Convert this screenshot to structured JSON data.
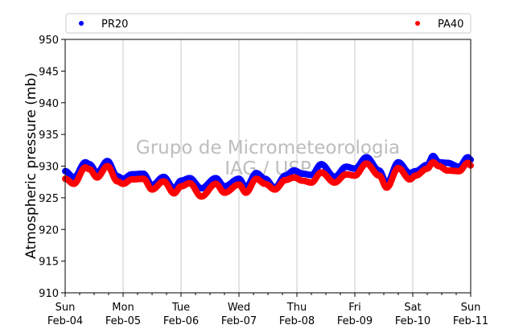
{
  "chart_data": {
    "type": "scatter",
    "title": "",
    "xlabel": "",
    "ylabel": "Atmospheric pressure (mb)",
    "ylim": [
      910,
      950
    ],
    "yticks": [
      910,
      915,
      920,
      925,
      930,
      935,
      940,
      945,
      950
    ],
    "xlim_days": [
      0,
      7
    ],
    "x_ticks": [
      {
        "day": "Sun",
        "date": "Feb-04"
      },
      {
        "day": "Mon",
        "date": "Feb-05"
      },
      {
        "day": "Tue",
        "date": "Feb-06"
      },
      {
        "day": "Wed",
        "date": "Feb-07"
      },
      {
        "day": "Thu",
        "date": "Feb-08"
      },
      {
        "day": "Fri",
        "date": "Feb-09"
      },
      {
        "day": "Sat",
        "date": "Feb-10"
      },
      {
        "day": "Sun",
        "date": "Feb-11"
      }
    ],
    "grid": "vertical",
    "legend_position": "top",
    "watermark": [
      "Grupo de Micrometeorologia",
      "IAG / USP"
    ],
    "series": [
      {
        "name": "PR20",
        "color": "#0000ff",
        "x": [
          0,
          0.15,
          0.35,
          0.42,
          0.55,
          0.73,
          0.9,
          1.0,
          1.15,
          1.35,
          1.5,
          1.7,
          1.88,
          2.0,
          2.15,
          2.35,
          2.6,
          2.75,
          3.0,
          3.12,
          3.3,
          3.45,
          3.62,
          3.8,
          3.95,
          4.1,
          4.25,
          4.42,
          4.65,
          4.85,
          5.0,
          5.2,
          5.42,
          5.55,
          5.75,
          5.95,
          6.05,
          6.25,
          6.35,
          6.45,
          6.6,
          6.8,
          6.95,
          7.0
        ],
        "y": [
          929.2,
          928.2,
          930.6,
          930.3,
          929.0,
          930.8,
          928.4,
          928.0,
          928.7,
          928.8,
          927.0,
          928.3,
          926.5,
          927.7,
          928.1,
          926.5,
          928.1,
          926.8,
          928.0,
          926.7,
          928.9,
          928.0,
          926.6,
          928.5,
          929.3,
          928.8,
          928.6,
          930.3,
          928.3,
          929.9,
          929.6,
          931.4,
          929.3,
          927.3,
          930.6,
          928.9,
          929.2,
          930.2,
          931.6,
          930.6,
          930.5,
          929.9,
          931.4,
          931.0
        ]
      },
      {
        "name": "PA40",
        "color": "#ff0000",
        "x": [
          0,
          0.15,
          0.35,
          0.42,
          0.55,
          0.73,
          0.9,
          1.0,
          1.15,
          1.35,
          1.5,
          1.7,
          1.88,
          2.0,
          2.15,
          2.35,
          2.6,
          2.75,
          3.0,
          3.12,
          3.3,
          3.45,
          3.62,
          3.8,
          3.95,
          4.1,
          4.25,
          4.42,
          4.65,
          4.85,
          5.0,
          5.2,
          5.42,
          5.55,
          5.75,
          5.95,
          6.05,
          6.25,
          6.35,
          6.45,
          6.6,
          6.8,
          6.95,
          7.0
        ],
        "y": [
          928.0,
          927.2,
          929.8,
          929.5,
          928.2,
          930.0,
          927.6,
          927.2,
          927.9,
          928.0,
          926.3,
          927.6,
          925.7,
          926.8,
          927.3,
          925.2,
          927.2,
          925.8,
          927.1,
          925.8,
          928.0,
          927.2,
          926.3,
          927.8,
          928.2,
          927.7,
          927.4,
          929.0,
          927.4,
          928.7,
          928.5,
          930.4,
          928.5,
          926.6,
          929.7,
          927.9,
          928.5,
          929.6,
          930.6,
          930.0,
          929.3,
          929.2,
          930.5,
          930.1
        ]
      }
    ]
  }
}
